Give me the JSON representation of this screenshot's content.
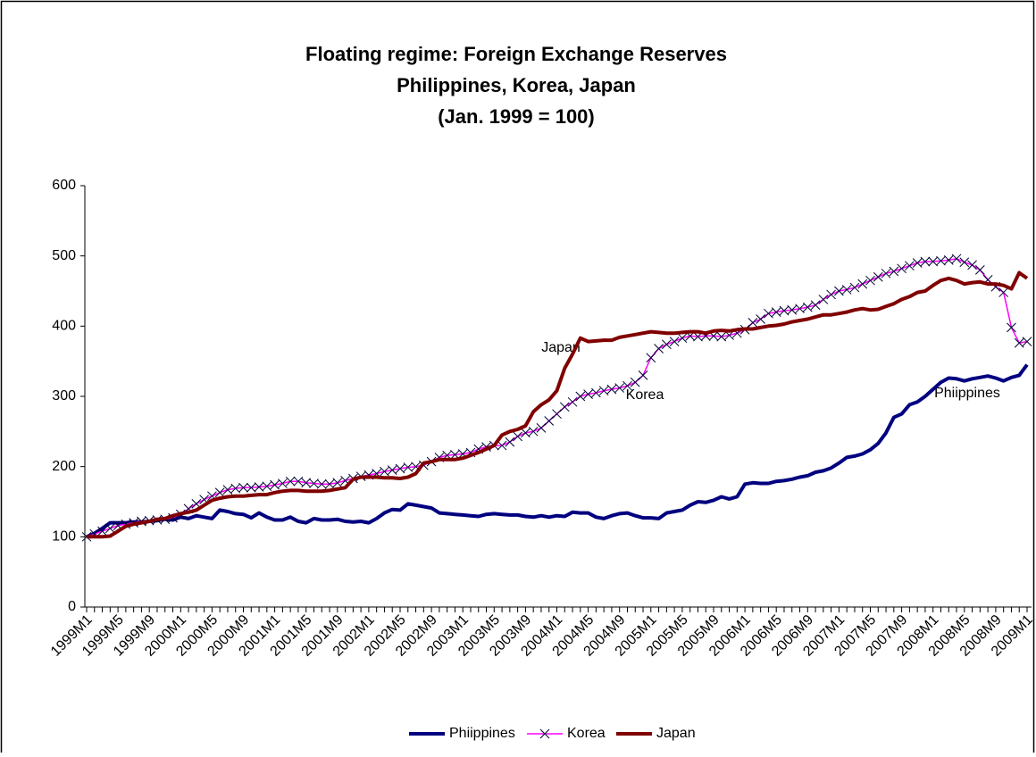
{
  "chart_data": {
    "type": "line",
    "title": [
      "Floating regime: Foreign Exchange Reserves",
      "Philippines, Korea, Japan",
      "(Jan. 1999 = 100)"
    ],
    "categories": [
      "1999M1",
      null,
      null,
      null,
      "1999M5",
      null,
      null,
      null,
      "1999M9",
      null,
      null,
      null,
      "2000M1",
      null,
      null,
      null,
      "2000M5",
      null,
      null,
      null,
      "2000M9",
      null,
      null,
      null,
      "2001M1",
      null,
      null,
      null,
      "2001M5",
      null,
      null,
      null,
      "2001M9",
      null,
      null,
      null,
      "2002M1",
      null,
      null,
      null,
      "2002M5",
      null,
      null,
      null,
      "2002M9",
      null,
      null,
      null,
      "2003M1",
      null,
      null,
      null,
      "2003M5",
      null,
      null,
      null,
      "2003M9",
      null,
      null,
      null,
      "2004M1",
      null,
      null,
      null,
      "2004M5",
      null,
      null,
      null,
      "2004M9",
      null,
      null,
      null,
      "2005M1",
      null,
      null,
      null,
      "2005M5",
      null,
      null,
      null,
      "2005M9",
      null,
      null,
      null,
      "2006M1",
      null,
      null,
      null,
      "2006M5",
      null,
      null,
      null,
      "2006M9",
      null,
      null,
      null,
      "2007M1",
      null,
      null,
      null,
      "2007M5",
      null,
      null,
      null,
      "2007M9",
      null,
      null,
      null,
      "2008M1",
      null,
      null,
      null,
      "2008M5",
      null,
      null,
      null,
      "2008M9",
      null,
      null,
      null,
      "2009M1"
    ],
    "series": [
      {
        "name": "Phiippines",
        "color": "#000080",
        "values": [
          100,
          105,
          112,
          120,
          120,
          120,
          121,
          121,
          122,
          123,
          125,
          124,
          128,
          126,
          130,
          128,
          126,
          138,
          136,
          133,
          132,
          127,
          134,
          128,
          124,
          124,
          128,
          122,
          120,
          126,
          124,
          124,
          125,
          122,
          121,
          122,
          120,
          126,
          134,
          139,
          138,
          147,
          145,
          143,
          141,
          134,
          133,
          132,
          131,
          130,
          129,
          132,
          133,
          132,
          131,
          131,
          129,
          128,
          130,
          128,
          130,
          129,
          135,
          134,
          134,
          128,
          126,
          130,
          133,
          134,
          130,
          127,
          127,
          126,
          134,
          136,
          138,
          145,
          150,
          149,
          152,
          157,
          154,
          157,
          175,
          177,
          176,
          176,
          179,
          180,
          182,
          185,
          187,
          192,
          194,
          198,
          205,
          213,
          215,
          218,
          224,
          233,
          248,
          270,
          275,
          288,
          292,
          300,
          310,
          320,
          326,
          325,
          322,
          325,
          327,
          329,
          326,
          322,
          327,
          330,
          345
        ]
      },
      {
        "name": "Korea",
        "color": "#ff00ff",
        "marker_color": "#000033",
        "values": [
          100,
          104,
          108,
          112,
          116,
          118,
          120,
          122,
          123,
          124,
          125,
          127,
          132,
          140,
          147,
          153,
          158,
          163,
          167,
          169,
          170,
          170,
          171,
          172,
          174,
          176,
          179,
          179,
          177,
          176,
          175,
          175,
          177,
          180,
          183,
          186,
          188,
          190,
          193,
          195,
          197,
          199,
          200,
          202,
          207,
          213,
          216,
          217,
          218,
          220,
          225,
          228,
          230,
          230,
          235,
          243,
          248,
          250,
          255,
          265,
          275,
          285,
          292,
          300,
          303,
          305,
          308,
          310,
          312,
          315,
          320,
          330,
          355,
          368,
          374,
          378,
          383,
          386,
          385,
          386,
          386,
          385,
          387,
          390,
          395,
          405,
          410,
          418,
          420,
          422,
          423,
          425,
          427,
          430,
          438,
          445,
          450,
          452,
          455,
          460,
          465,
          470,
          475,
          478,
          482,
          486,
          490,
          492,
          492,
          493,
          494,
          496,
          491,
          487,
          480,
          466,
          456,
          448,
          398,
          376,
          378
        ]
      },
      {
        "name": "Japan",
        "color": "#800000",
        "values": [
          100,
          100,
          100,
          101,
          108,
          115,
          118,
          120,
          122,
          125,
          126,
          130,
          133,
          135,
          138,
          145,
          152,
          155,
          157,
          158,
          158,
          159,
          160,
          160,
          163,
          165,
          166,
          166,
          165,
          165,
          165,
          166,
          168,
          170,
          182,
          185,
          185,
          185,
          184,
          184,
          183,
          185,
          190,
          205,
          207,
          210,
          210,
          210,
          212,
          216,
          220,
          225,
          230,
          245,
          250,
          253,
          258,
          278,
          288,
          295,
          308,
          340,
          360,
          383,
          378,
          379,
          380,
          380,
          384,
          386,
          388,
          390,
          392,
          391,
          390,
          390,
          391,
          392,
          392,
          390,
          393,
          394,
          393,
          395,
          396,
          396,
          398,
          400,
          401,
          403,
          406,
          408,
          410,
          413,
          416,
          416,
          418,
          420,
          423,
          425,
          423,
          424,
          428,
          432,
          438,
          442,
          448,
          450,
          458,
          465,
          468,
          465,
          460,
          462,
          463,
          460,
          460,
          458,
          453,
          476,
          468
        ]
      }
    ],
    "annotations": [
      "Japan",
      "Korea",
      "Phiippines"
    ],
    "ylim": [
      0,
      600
    ],
    "yticks": [
      0,
      100,
      200,
      300,
      400,
      500,
      600
    ],
    "grid": false,
    "legend": "bottom"
  }
}
